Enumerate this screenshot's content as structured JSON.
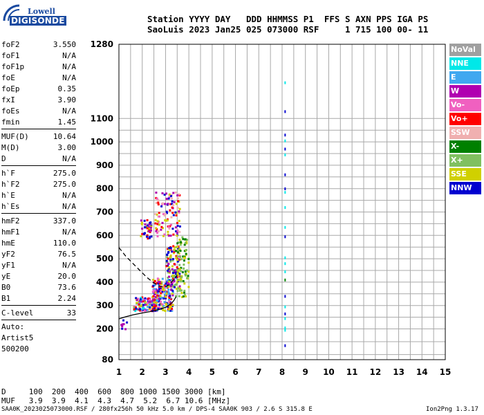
{
  "logo": {
    "top": "Lowell",
    "bottom": "DIGISONDE"
  },
  "header": {
    "line1": "Station YYYY DAY   DDD HHMMSS P1  FFS S AXN PPS IGA PS",
    "line2": "SaoLuis 2023 Jan25 025 073000 RSF     1 715 100 00- 11"
  },
  "params": {
    "group1": [
      {
        "name": "foF2",
        "value": "3.550"
      },
      {
        "name": "foF1",
        "value": "N/A"
      },
      {
        "name": "foF1p",
        "value": "N/A"
      },
      {
        "name": "foE",
        "value": "N/A"
      },
      {
        "name": "foEp",
        "value": "0.35"
      },
      {
        "name": "fxI",
        "value": "3.90"
      },
      {
        "name": "foEs",
        "value": "N/A"
      },
      {
        "name": "fmin",
        "value": "1.45"
      }
    ],
    "group2": [
      {
        "name": "MUF(D)",
        "value": "10.64"
      },
      {
        "name": "M(D)",
        "value": "3.00"
      },
      {
        "name": "D",
        "value": "N/A"
      }
    ],
    "group3": [
      {
        "name": "h`F",
        "value": "275.0"
      },
      {
        "name": "h`F2",
        "value": "275.0"
      },
      {
        "name": "h`E",
        "value": "N/A"
      },
      {
        "name": "h`Es",
        "value": "N/A"
      }
    ],
    "group4": [
      {
        "name": "hmF2",
        "value": "337.0"
      },
      {
        "name": "hmF1",
        "value": "N/A"
      },
      {
        "name": "hmE",
        "value": "110.0"
      },
      {
        "name": "yF2",
        "value": "76.5"
      },
      {
        "name": "yF1",
        "value": "N/A"
      },
      {
        "name": "yE",
        "value": "20.0"
      },
      {
        "name": "B0",
        "value": "73.6"
      },
      {
        "name": "B1",
        "value": "2.24"
      }
    ],
    "group5": [
      {
        "name": "C-level",
        "value": "33"
      }
    ],
    "auto": [
      "Auto:",
      "Artist5",
      "500200"
    ]
  },
  "legend": [
    {
      "label": "NoVal",
      "color": "#a0a0a0"
    },
    {
      "label": "NNE",
      "color": "#00e8e8"
    },
    {
      "label": "E",
      "color": "#40a8f0"
    },
    {
      "label": "W",
      "color": "#b000b0"
    },
    {
      "label": "Vo-",
      "color": "#f060c0"
    },
    {
      "label": "Vo+",
      "color": "#ff0000"
    },
    {
      "label": "SSW",
      "color": "#f0b0b0"
    },
    {
      "label": "X-",
      "color": "#008000"
    },
    {
      "label": "X+",
      "color": "#80c060"
    },
    {
      "label": "SSE",
      "color": "#d0d000"
    },
    {
      "label": "NNW",
      "color": "#0000d0"
    }
  ],
  "dmuf": {
    "dline": "D     100  200  400  600  800 1000 1500 3000 [km]",
    "mline": "MUF   3.9  3.9  4.1  4.3  4.7  5.2  6.7 10.6 [MHz]"
  },
  "footer": {
    "left": "SAA0K_2023025073000.RSF / 280fx256h 50 kHz 5.0 km / DPS-4 SAA0K 903 / 2.6 S 315.8 E",
    "right": "Ion2Png 1.3.17"
  },
  "chart_data": {
    "type": "scatter",
    "title": "",
    "xlabel": "",
    "ylabel": "",
    "xlim": [
      1,
      15
    ],
    "ylim": [
      80,
      1280
    ],
    "x_ticks": [
      1,
      2,
      3,
      4,
      5,
      6,
      7,
      8,
      9,
      10,
      11,
      12,
      13,
      14,
      15
    ],
    "y_tick_labels": [
      80,
      200,
      300,
      400,
      500,
      600,
      700,
      800,
      900,
      1000,
      1100,
      1280
    ],
    "grid": true,
    "o_trace": [
      [
        1.0,
        243
      ],
      [
        1.3,
        252
      ],
      [
        1.6,
        260
      ],
      [
        2.0,
        268
      ],
      [
        2.4,
        275
      ],
      [
        2.7,
        282
      ],
      [
        3.0,
        292
      ],
      [
        3.2,
        305
      ],
      [
        3.35,
        320
      ],
      [
        3.45,
        337
      ]
    ],
    "x_trace": [
      [
        1.0,
        548
      ],
      [
        1.3,
        510
      ],
      [
        1.6,
        480
      ],
      [
        1.9,
        450
      ],
      [
        2.2,
        420
      ],
      [
        2.45,
        400
      ],
      [
        2.7,
        385
      ],
      [
        2.9,
        378
      ],
      [
        3.1,
        385
      ],
      [
        3.3,
        405
      ],
      [
        3.5,
        430
      ]
    ],
    "echo_clusters": [
      {
        "x": [
          1.6,
          2.6
        ],
        "h": [
          280,
          340
        ],
        "n": 130,
        "colors": [
          "#0000d0",
          "#ff0000",
          "#b000b0",
          "#d0d000",
          "#f060c0",
          "#00e8e8",
          "#40a8f0"
        ]
      },
      {
        "x": [
          2.4,
          3.3
        ],
        "h": [
          280,
          420
        ],
        "n": 200,
        "colors": [
          "#0000d0",
          "#ff0000",
          "#b000b0",
          "#d0d000",
          "#f060c0",
          "#40a8f0"
        ]
      },
      {
        "x": [
          3.0,
          3.6
        ],
        "h": [
          380,
          560
        ],
        "n": 120,
        "colors": [
          "#0000d0",
          "#ff0000",
          "#b000b0",
          "#d0d000",
          "#80c060"
        ]
      },
      {
        "x": [
          3.4,
          3.95
        ],
        "h": [
          340,
          600
        ],
        "n": 90,
        "colors": [
          "#80c060",
          "#008000",
          "#d0d000"
        ]
      },
      {
        "x": [
          2.5,
          3.6
        ],
        "h": [
          600,
          790
        ],
        "n": 110,
        "colors": [
          "#d0d000",
          "#f0b0b0",
          "#ff0000",
          "#0000d0",
          "#b000b0",
          "#f060c0"
        ]
      },
      {
        "x": [
          1.9,
          2.4
        ],
        "h": [
          590,
          670
        ],
        "n": 40,
        "colors": [
          "#0000d0",
          "#d0d000",
          "#ff0000",
          "#b000b0"
        ]
      },
      {
        "x": [
          1.05,
          1.3
        ],
        "h": [
          200,
          260
        ],
        "n": 8,
        "colors": [
          "#0000d0",
          "#b000b0"
        ]
      }
    ],
    "vertical_line_echoes": [
      {
        "x": 8.1,
        "h": 1190,
        "color": "#00e8e8"
      },
      {
        "x": 8.1,
        "h": 1120,
        "color": "#0000d0"
      },
      {
        "x": 8.1,
        "h": 1035,
        "color": "#0000d0"
      },
      {
        "x": 8.1,
        "h": 1010,
        "color": "#00e8e8"
      },
      {
        "x": 8.1,
        "h": 975,
        "color": "#0000d0"
      },
      {
        "x": 8.1,
        "h": 950,
        "color": "#00e8e8"
      },
      {
        "x": 8.1,
        "h": 865,
        "color": "#0000d0"
      },
      {
        "x": 8.1,
        "h": 805,
        "color": "#0000d0"
      },
      {
        "x": 8.1,
        "h": 790,
        "color": "#00e8e8"
      },
      {
        "x": 8.1,
        "h": 725,
        "color": "#00e8e8"
      },
      {
        "x": 8.1,
        "h": 640,
        "color": "#00e8e8"
      },
      {
        "x": 8.1,
        "h": 600,
        "color": "#0000d0"
      },
      {
        "x": 8.1,
        "h": 510,
        "color": "#00e8e8"
      },
      {
        "x": 8.1,
        "h": 485,
        "color": "#00e8e8"
      },
      {
        "x": 8.1,
        "h": 450,
        "color": "#00e8e8"
      },
      {
        "x": 8.1,
        "h": 415,
        "color": "#008000"
      },
      {
        "x": 8.1,
        "h": 345,
        "color": "#0000d0"
      },
      {
        "x": 8.1,
        "h": 300,
        "color": "#00e8e8"
      },
      {
        "x": 8.1,
        "h": 250,
        "color": "#00e8e8"
      },
      {
        "x": 8.1,
        "h": 210,
        "color": "#00e8e8"
      },
      {
        "x": 8.1,
        "h": 200,
        "color": "#00e8e8"
      },
      {
        "x": 8.1,
        "h": 140,
        "color": "#0000d0"
      },
      {
        "x": 8.1,
        "h": 270,
        "color": "#0000d0"
      }
    ]
  }
}
